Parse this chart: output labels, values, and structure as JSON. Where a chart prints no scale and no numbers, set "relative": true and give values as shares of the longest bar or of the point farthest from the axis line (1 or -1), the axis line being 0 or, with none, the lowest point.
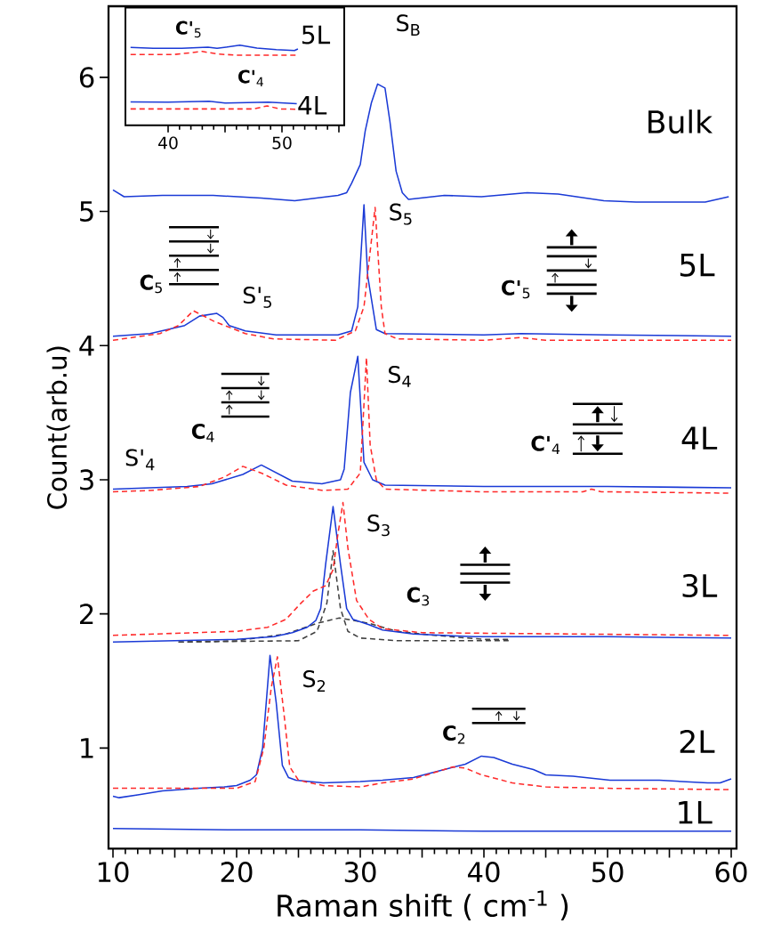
{
  "chart_data": [
    {
      "type": "line",
      "xlabel": "Raman shift ( cm$^{-1}$ )",
      "ylabel": "Count(arb.u)",
      "xlim": [
        9.64,
        60.43
      ],
      "ylim": [
        0.25,
        6.53
      ],
      "xticks": [
        10,
        {
          "value": 15,
          "label": null
        },
        20,
        {
          "value": 25,
          "label": null
        },
        30,
        {
          "value": 35,
          "label": null
        },
        40,
        {
          "value": 45,
          "label": null
        },
        50,
        {
          "value": 55,
          "label": null
        },
        60
      ],
      "yticks": [
        1,
        2,
        3,
        4,
        5,
        6
      ],
      "series": [
        {
          "color": "#1a3ad6",
          "line_style": "solid",
          "x": [
            10,
            20,
            30,
            40,
            50,
            60
          ],
          "values": [
            0.4,
            0.39,
            0.39,
            0.38,
            0.38,
            0.38
          ]
        },
        {
          "color": "#1a3ad6",
          "line_style": "solid",
          "x": [
            10,
            10.5,
            12,
            14,
            17,
            19,
            20,
            21.1,
            21.6,
            22.1,
            22.7,
            23.2,
            23.7,
            24.2,
            24.8,
            27,
            30,
            31.8,
            34.3,
            36.8,
            38.5,
            39.8,
            40.8,
            42.3,
            44,
            45,
            47.2,
            50.2,
            54.2,
            58.1,
            59.1,
            60
          ],
          "values": [
            0.64,
            0.63,
            0.65,
            0.68,
            0.7,
            0.71,
            0.72,
            0.76,
            0.8,
            1.0,
            1.69,
            1.34,
            0.87,
            0.78,
            0.76,
            0.74,
            0.75,
            0.76,
            0.78,
            0.84,
            0.88,
            0.94,
            0.93,
            0.88,
            0.84,
            0.8,
            0.79,
            0.76,
            0.76,
            0.74,
            0.74,
            0.77
          ]
        },
        {
          "color": "#ff2a2a",
          "line_style": "dashed",
          "x": [
            10,
            15,
            20,
            21.5,
            22.2,
            22.8,
            23.3,
            23.8,
            24.3,
            25,
            27,
            30,
            31.8,
            34.3,
            36.8,
            37.5,
            38.5,
            39.8,
            42.3,
            45,
            50,
            60
          ],
          "values": [
            0.7,
            0.7,
            0.7,
            0.75,
            1.0,
            1.45,
            1.68,
            1.28,
            0.86,
            0.76,
            0.72,
            0.71,
            0.74,
            0.77,
            0.84,
            0.86,
            0.85,
            0.8,
            0.74,
            0.71,
            0.7,
            0.69
          ]
        },
        {
          "color": "#404040",
          "line_style": "dashed",
          "x": [
            15.3,
            20,
            24,
            26.5,
            28.3,
            30.7,
            33,
            36,
            40,
            42
          ],
          "values": [
            1.79,
            1.8,
            1.85,
            1.93,
            1.97,
            1.93,
            1.87,
            1.84,
            1.81,
            1.81
          ]
        },
        {
          "color": "#404040",
          "line_style": "dashed",
          "x": [
            15.3,
            25,
            26.5,
            27.3,
            27.8,
            28.4,
            29,
            30,
            33,
            42
          ],
          "values": [
            1.79,
            1.8,
            1.87,
            2.08,
            2.47,
            2.04,
            1.87,
            1.82,
            1.8,
            1.8
          ]
        },
        {
          "color": "#1a3ad6",
          "line_style": "solid",
          "x": [
            10,
            15,
            20,
            23,
            24.5,
            25.7,
            26.4,
            26.8,
            27.2,
            27.8,
            28.4,
            28.9,
            29.4,
            30.7,
            31.8,
            34.3,
            39.3,
            50,
            60
          ],
          "values": [
            1.79,
            1.8,
            1.81,
            1.83,
            1.86,
            1.9,
            1.95,
            2.04,
            2.37,
            2.8,
            2.37,
            2.04,
            1.96,
            1.92,
            1.88,
            1.85,
            1.83,
            1.83,
            1.82
          ]
        },
        {
          "color": "#ff2a2a",
          "line_style": "dashed",
          "x": [
            10,
            20,
            22.5,
            24,
            25.2,
            26.2,
            27.2,
            27.8,
            28.2,
            28.6,
            29.0,
            29.7,
            30.7,
            31.8,
            35,
            60
          ],
          "values": [
            1.84,
            1.87,
            1.9,
            1.96,
            2.08,
            2.17,
            2.21,
            2.33,
            2.6,
            2.83,
            2.49,
            2.1,
            1.96,
            1.89,
            1.86,
            1.84
          ]
        },
        {
          "color": "#1a3ad6",
          "line_style": "solid",
          "x": [
            10,
            13,
            16,
            18,
            20.5,
            22,
            24.5,
            26.9,
            28.4,
            28.7,
            29.2,
            29.8,
            30.3,
            31,
            32,
            40,
            50,
            60
          ],
          "values": [
            2.93,
            2.94,
            2.95,
            2.97,
            3.04,
            3.11,
            2.99,
            2.97,
            3.0,
            3.08,
            3.65,
            3.92,
            3.13,
            3.0,
            2.96,
            2.95,
            2.95,
            2.94
          ]
        },
        {
          "color": "#ff2a2a",
          "line_style": "dashed",
          "x": [
            10,
            13,
            17,
            19,
            20.5,
            22,
            24,
            27,
            29,
            30,
            30.5,
            30.8,
            31.3,
            32,
            40,
            48,
            48.7,
            49.5,
            50,
            60
          ],
          "values": [
            2.91,
            2.92,
            2.95,
            3.02,
            3.1,
            3.05,
            2.96,
            2.92,
            2.93,
            3.05,
            3.91,
            3.26,
            3.0,
            2.93,
            2.91,
            2.91,
            2.93,
            2.91,
            2.91,
            2.9
          ]
        },
        {
          "color": "#1a3ad6",
          "line_style": "solid",
          "x": [
            10,
            13,
            15.8,
            17,
            18.4,
            18.9,
            19.4,
            20.7,
            23.2,
            28.2,
            29.3,
            29.8,
            30.3,
            30.6,
            31.3,
            32,
            40,
            43,
            50,
            60
          ],
          "values": [
            4.07,
            4.09,
            4.15,
            4.22,
            4.24,
            4.21,
            4.15,
            4.11,
            4.08,
            4.08,
            4.11,
            4.29,
            5.05,
            4.52,
            4.12,
            4.09,
            4.08,
            4.09,
            4.08,
            4.07
          ]
        },
        {
          "color": "#ff2a2a",
          "line_style": "dashed",
          "x": [
            10,
            13.8,
            15.3,
            16.5,
            18.2,
            20.7,
            23,
            28,
            29.6,
            30.3,
            31.2,
            31.7,
            32,
            33,
            40,
            43,
            45,
            60
          ],
          "values": [
            4.04,
            4.09,
            4.15,
            4.26,
            4.18,
            4.09,
            4.05,
            4.04,
            4.11,
            4.29,
            5.03,
            4.29,
            4.09,
            4.05,
            4.04,
            4.06,
            4.04,
            4.04
          ]
        },
        {
          "color": "#1a3ad6",
          "line_style": "solid",
          "x": [
            10,
            10.9,
            14,
            18.1,
            22,
            24.7,
            28.2,
            28.9,
            29.3,
            30,
            30.4,
            30.9,
            31.4,
            32,
            32.4,
            32.9,
            33.4,
            33.9,
            36.8,
            39.8,
            43.5,
            46,
            49.7,
            52.3,
            57.9,
            59.8
          ],
          "values": [
            5.16,
            5.11,
            5.12,
            5.12,
            5.1,
            5.08,
            5.12,
            5.14,
            5.21,
            5.35,
            5.6,
            5.81,
            5.95,
            5.92,
            5.67,
            5.3,
            5.14,
            5.09,
            5.12,
            5.11,
            5.14,
            5.13,
            5.08,
            5.07,
            5.07,
            5.11
          ]
        }
      ],
      "annotations": [
        "S$_{B}$",
        "Bulk",
        "S$_{5}$",
        "5L",
        "S'$_{5}$",
        "**C**$_{5}$",
        "**C'**$_{5}$",
        "S$_{4}$",
        "4L",
        "S'$_{4}$",
        "**C**$_{4}$",
        "**C'**$_{4}$",
        "S$_{3}$",
        "3L",
        "**C**$_{3}$",
        "S$_{2}$",
        "2L",
        "**C**$_{2}$",
        "1L"
      ]
    },
    {
      "type": "line",
      "relative": true,
      "xlim": [
        36.25,
        55.47
      ],
      "xticks": [
        40,
        {
          "value": 45,
          "label": null
        },
        50,
        {
          "value": 55,
          "label": null
        }
      ],
      "series": [
        {
          "color": "#1a3ad6",
          "line_style": "solid",
          "x": [
            36.7,
            38.7,
            41.2,
            43.5,
            44.3,
            46.3,
            47.8,
            49.5,
            51.1,
            51.4
          ],
          "values": [
            0.973,
            0.961,
            0.961,
            0.977,
            0.961,
            1.0,
            0.965,
            0.945,
            0.934,
            0.954
          ]
        },
        {
          "color": "#ff2a2a",
          "line_style": "dashed",
          "x": [
            36.7,
            40.5,
            42,
            43,
            44.3,
            46,
            51.4
          ],
          "values": [
            0.884,
            0.884,
            0.907,
            0.923,
            0.891,
            0.876,
            0.876
          ]
        },
        {
          "color": "#1a3ad6",
          "line_style": "solid",
          "x": [
            36.7,
            40,
            43.6,
            45,
            48.8,
            51.3
          ],
          "values": [
            0.292,
            0.288,
            0.3,
            0.277,
            0.288,
            0.269
          ]
        },
        {
          "color": "#ff2a2a",
          "line_style": "dashed",
          "x": [
            36.7,
            47.5,
            48.7,
            49.8,
            51.4
          ],
          "values": [
            0.204,
            0.204,
            0.242,
            0.204,
            0.2
          ]
        }
      ],
      "annotations": [
        "**C'**$_{5}$",
        "5L",
        "**C'**$_{4}$",
        "4L"
      ]
    }
  ]
}
